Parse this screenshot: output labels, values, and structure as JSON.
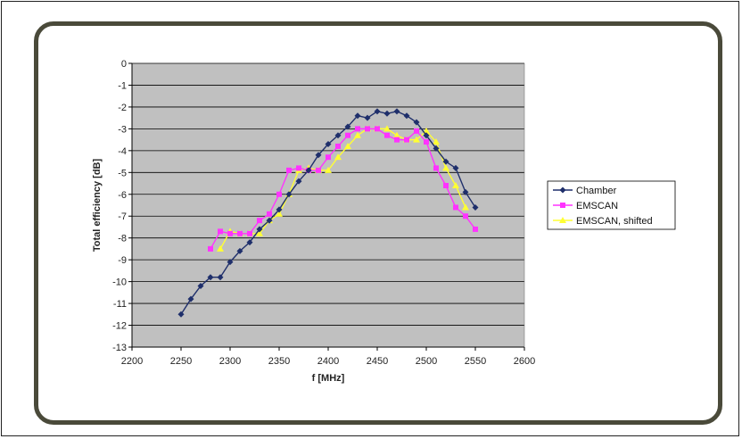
{
  "chart_data": {
    "type": "line",
    "title": "",
    "xlabel": "f [MHz]",
    "ylabel": "Total efficiency [dB]",
    "xlim": [
      2200,
      2600
    ],
    "ylim": [
      -13,
      0
    ],
    "x_ticks": [
      2200,
      2250,
      2300,
      2350,
      2400,
      2450,
      2500,
      2550,
      2600
    ],
    "y_ticks": [
      0,
      -1,
      -2,
      -3,
      -4,
      -5,
      -6,
      -7,
      -8,
      -9,
      -10,
      -11,
      -12,
      -13
    ],
    "grid": "horizontal",
    "legend_position": "right",
    "plot_background": "#c0c0c0",
    "series": [
      {
        "name": "Chamber",
        "color": "#1f2f6b",
        "marker": "diamond",
        "x": [
          2250,
          2260,
          2270,
          2280,
          2290,
          2300,
          2310,
          2320,
          2330,
          2340,
          2350,
          2360,
          2370,
          2380,
          2390,
          2400,
          2410,
          2420,
          2430,
          2440,
          2450,
          2460,
          2470,
          2480,
          2490,
          2500,
          2510,
          2520,
          2530,
          2540,
          2550
        ],
        "y": [
          -11.5,
          -10.8,
          -10.2,
          -9.8,
          -9.8,
          -9.1,
          -8.6,
          -8.2,
          -7.6,
          -7.2,
          -6.7,
          -6.0,
          -5.4,
          -4.9,
          -4.2,
          -3.7,
          -3.3,
          -2.9,
          -2.4,
          -2.5,
          -2.2,
          -2.3,
          -2.2,
          -2.4,
          -2.7,
          -3.3,
          -3.9,
          -4.5,
          -4.8,
          -5.9,
          -6.6
        ]
      },
      {
        "name": "EMSCAN",
        "color": "#ff33ff",
        "marker": "square",
        "x": [
          2280,
          2290,
          2300,
          2310,
          2320,
          2330,
          2340,
          2350,
          2360,
          2370,
          2380,
          2390,
          2400,
          2410,
          2420,
          2430,
          2440,
          2450,
          2460,
          2470,
          2480,
          2490,
          2500,
          2510,
          2520,
          2530,
          2540,
          2550
        ],
        "y": [
          -8.5,
          -7.7,
          -7.8,
          -7.8,
          -7.8,
          -7.2,
          -6.9,
          -6.0,
          -4.9,
          -4.8,
          -4.9,
          -4.9,
          -4.3,
          -3.8,
          -3.3,
          -3.0,
          -3.0,
          -3.0,
          -3.3,
          -3.5,
          -3.5,
          -3.1,
          -3.6,
          -4.8,
          -5.6,
          -6.6,
          -7.0,
          -7.6
        ]
      },
      {
        "name": "EMSCAN, shifted",
        "color": "#ffff33",
        "marker": "triangle",
        "x": [
          2290,
          2300,
          2310,
          2320,
          2330,
          2340,
          2350,
          2360,
          2370,
          2380,
          2390,
          2400,
          2410,
          2420,
          2430,
          2440,
          2450,
          2460,
          2470,
          2480,
          2490,
          2500,
          2510,
          2520,
          2530,
          2540
        ],
        "y": [
          -8.5,
          -7.7,
          -7.8,
          -7.8,
          -7.8,
          -7.2,
          -6.9,
          -6.0,
          -4.9,
          -4.8,
          -4.9,
          -4.9,
          -4.3,
          -3.8,
          -3.3,
          -3.0,
          -3.0,
          -3.0,
          -3.3,
          -3.5,
          -3.5,
          -3.1,
          -3.6,
          -4.8,
          -5.6,
          -6.6
        ]
      }
    ]
  }
}
